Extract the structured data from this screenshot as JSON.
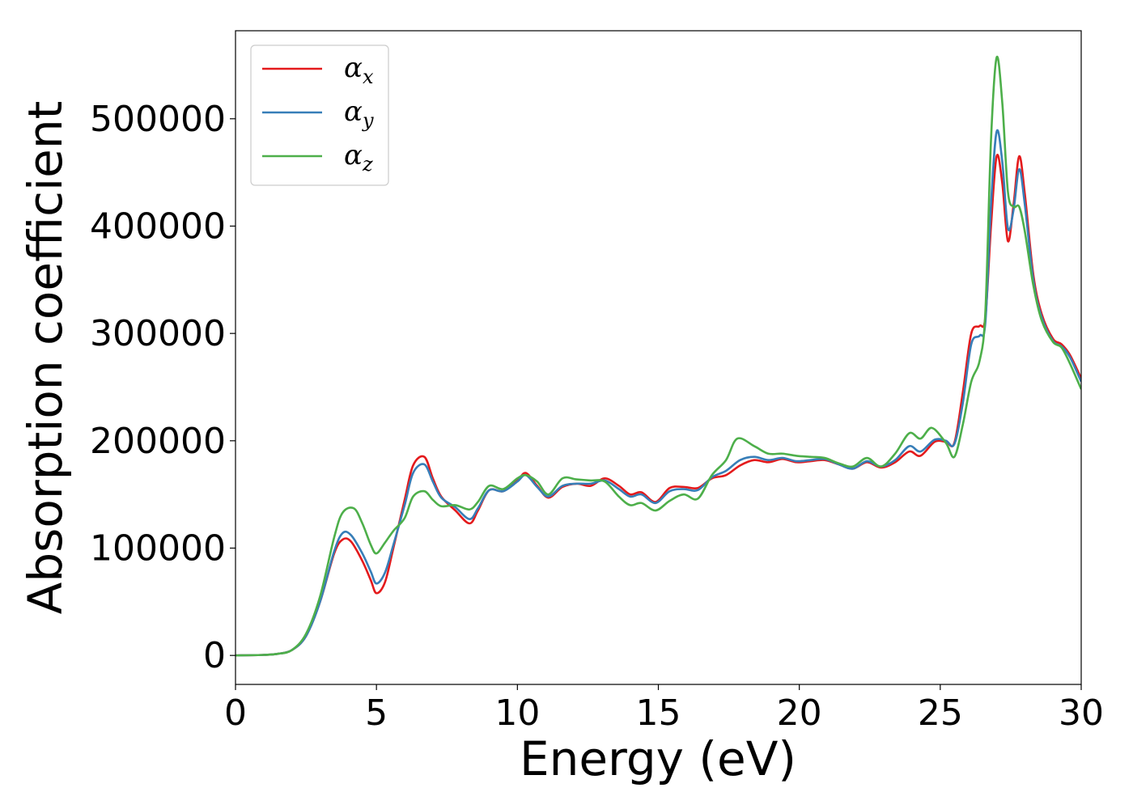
{
  "chart_data": {
    "type": "line",
    "title": "",
    "xlabel": "Energy (eV)",
    "ylabel": "Absorption coefficient",
    "xlim": [
      0,
      30
    ],
    "ylim": [
      -27000,
      582000
    ],
    "xticks": [
      0,
      5,
      10,
      15,
      20,
      25,
      30
    ],
    "yticks": [
      0,
      100000,
      200000,
      300000,
      400000,
      500000
    ],
    "grid": false,
    "legend_position": "upper-left",
    "series": [
      {
        "name": "α_x",
        "symbol": "α",
        "subscript": "x",
        "color": "#e41a1c",
        "points": [
          [
            0,
            0
          ],
          [
            1,
            500
          ],
          [
            1.5,
            1500
          ],
          [
            2,
            5000
          ],
          [
            2.5,
            18000
          ],
          [
            3,
            50000
          ],
          [
            3.5,
            95000
          ],
          [
            3.8,
            108000
          ],
          [
            4.1,
            106000
          ],
          [
            4.5,
            88000
          ],
          [
            4.8,
            70000
          ],
          [
            5,
            58000
          ],
          [
            5.3,
            68000
          ],
          [
            5.6,
            100000
          ],
          [
            6.0,
            145000
          ],
          [
            6.3,
            177000
          ],
          [
            6.7,
            185000
          ],
          [
            7.0,
            165000
          ],
          [
            7.3,
            148000
          ],
          [
            7.8,
            135000
          ],
          [
            8.3,
            123000
          ],
          [
            8.6,
            135000
          ],
          [
            9.0,
            154000
          ],
          [
            9.5,
            153000
          ],
          [
            10.0,
            163000
          ],
          [
            10.3,
            170000
          ],
          [
            10.7,
            158000
          ],
          [
            11.1,
            147000
          ],
          [
            11.6,
            157000
          ],
          [
            12.1,
            160000
          ],
          [
            12.6,
            158000
          ],
          [
            13.1,
            165000
          ],
          [
            13.6,
            158000
          ],
          [
            14.0,
            150000
          ],
          [
            14.4,
            152000
          ],
          [
            14.9,
            143000
          ],
          [
            15.4,
            156000
          ],
          [
            15.9,
            157000
          ],
          [
            16.4,
            156000
          ],
          [
            16.9,
            165000
          ],
          [
            17.4,
            168000
          ],
          [
            17.9,
            177000
          ],
          [
            18.4,
            182000
          ],
          [
            18.9,
            180000
          ],
          [
            19.4,
            183000
          ],
          [
            19.9,
            180000
          ],
          [
            20.4,
            181000
          ],
          [
            20.9,
            182000
          ],
          [
            21.4,
            178000
          ],
          [
            21.9,
            174000
          ],
          [
            22.4,
            180000
          ],
          [
            22.9,
            175000
          ],
          [
            23.4,
            180000
          ],
          [
            23.9,
            190000
          ],
          [
            24.3,
            186000
          ],
          [
            24.8,
            199000
          ],
          [
            25.2,
            199000
          ],
          [
            25.5,
            198000
          ],
          [
            25.8,
            245000
          ],
          [
            26.1,
            300000
          ],
          [
            26.4,
            307000
          ],
          [
            26.6,
            315000
          ],
          [
            26.8,
            400000
          ],
          [
            27.0,
            465000
          ],
          [
            27.2,
            440000
          ],
          [
            27.4,
            386000
          ],
          [
            27.6,
            420000
          ],
          [
            27.8,
            465000
          ],
          [
            28.0,
            430000
          ],
          [
            28.3,
            355000
          ],
          [
            28.6,
            318000
          ],
          [
            29.0,
            295000
          ],
          [
            29.3,
            290000
          ],
          [
            29.6,
            280000
          ],
          [
            30.0,
            258000
          ]
        ]
      },
      {
        "name": "α_y",
        "symbol": "α",
        "subscript": "y",
        "color": "#377eb8",
        "points": [
          [
            0,
            0
          ],
          [
            1,
            500
          ],
          [
            1.5,
            1500
          ],
          [
            2,
            5000
          ],
          [
            2.5,
            18000
          ],
          [
            3,
            50000
          ],
          [
            3.5,
            97000
          ],
          [
            3.8,
            114000
          ],
          [
            4.1,
            112000
          ],
          [
            4.5,
            95000
          ],
          [
            4.8,
            78000
          ],
          [
            5,
            67000
          ],
          [
            5.3,
            77000
          ],
          [
            5.6,
            103000
          ],
          [
            6.0,
            140000
          ],
          [
            6.3,
            170000
          ],
          [
            6.7,
            178000
          ],
          [
            7.0,
            162000
          ],
          [
            7.3,
            147000
          ],
          [
            7.8,
            138000
          ],
          [
            8.3,
            127000
          ],
          [
            8.6,
            137000
          ],
          [
            9.0,
            154000
          ],
          [
            9.5,
            153000
          ],
          [
            10.0,
            162000
          ],
          [
            10.3,
            168000
          ],
          [
            10.7,
            157000
          ],
          [
            11.1,
            148000
          ],
          [
            11.6,
            158000
          ],
          [
            12.1,
            160000
          ],
          [
            12.6,
            160000
          ],
          [
            13.1,
            163000
          ],
          [
            13.6,
            155000
          ],
          [
            14.0,
            148000
          ],
          [
            14.4,
            150000
          ],
          [
            14.9,
            142000
          ],
          [
            15.4,
            153000
          ],
          [
            15.9,
            155000
          ],
          [
            16.4,
            154000
          ],
          [
            16.9,
            166000
          ],
          [
            17.4,
            172000
          ],
          [
            17.9,
            182000
          ],
          [
            18.4,
            185000
          ],
          [
            18.9,
            182000
          ],
          [
            19.4,
            184000
          ],
          [
            19.9,
            181000
          ],
          [
            20.4,
            182000
          ],
          [
            20.9,
            183000
          ],
          [
            21.4,
            178000
          ],
          [
            21.9,
            174000
          ],
          [
            22.4,
            181000
          ],
          [
            22.9,
            176000
          ],
          [
            23.4,
            182000
          ],
          [
            23.9,
            195000
          ],
          [
            24.3,
            190000
          ],
          [
            24.8,
            201000
          ],
          [
            25.2,
            200000
          ],
          [
            25.5,
            197000
          ],
          [
            25.8,
            235000
          ],
          [
            26.1,
            290000
          ],
          [
            26.4,
            298000
          ],
          [
            26.6,
            310000
          ],
          [
            26.8,
            420000
          ],
          [
            27.0,
            488000
          ],
          [
            27.2,
            460000
          ],
          [
            27.4,
            398000
          ],
          [
            27.6,
            415000
          ],
          [
            27.8,
            453000
          ],
          [
            28.0,
            420000
          ],
          [
            28.3,
            350000
          ],
          [
            28.6,
            315000
          ],
          [
            29.0,
            293000
          ],
          [
            29.3,
            288000
          ],
          [
            29.6,
            278000
          ],
          [
            30.0,
            255000
          ]
        ]
      },
      {
        "name": "α_z",
        "symbol": "α",
        "subscript": "z",
        "color": "#4daf4a",
        "points": [
          [
            0,
            0
          ],
          [
            1,
            500
          ],
          [
            1.5,
            1500
          ],
          [
            2,
            5000
          ],
          [
            2.5,
            20000
          ],
          [
            3,
            55000
          ],
          [
            3.5,
            110000
          ],
          [
            3.8,
            133000
          ],
          [
            4.2,
            137000
          ],
          [
            4.5,
            123000
          ],
          [
            4.8,
            103000
          ],
          [
            5,
            95000
          ],
          [
            5.3,
            105000
          ],
          [
            5.6,
            116000
          ],
          [
            6.0,
            128000
          ],
          [
            6.3,
            148000
          ],
          [
            6.7,
            153000
          ],
          [
            7.0,
            145000
          ],
          [
            7.3,
            139000
          ],
          [
            7.8,
            140000
          ],
          [
            8.3,
            136000
          ],
          [
            8.6,
            143000
          ],
          [
            9.0,
            158000
          ],
          [
            9.5,
            155000
          ],
          [
            10.0,
            165000
          ],
          [
            10.3,
            168000
          ],
          [
            10.7,
            162000
          ],
          [
            11.1,
            150000
          ],
          [
            11.6,
            165000
          ],
          [
            12.1,
            164000
          ],
          [
            12.6,
            163000
          ],
          [
            13.1,
            162000
          ],
          [
            13.6,
            148000
          ],
          [
            14.0,
            140000
          ],
          [
            14.4,
            142000
          ],
          [
            14.9,
            135000
          ],
          [
            15.4,
            144000
          ],
          [
            15.9,
            150000
          ],
          [
            16.4,
            146000
          ],
          [
            16.9,
            168000
          ],
          [
            17.4,
            182000
          ],
          [
            17.8,
            202000
          ],
          [
            18.4,
            195000
          ],
          [
            18.9,
            188000
          ],
          [
            19.4,
            188000
          ],
          [
            19.9,
            186000
          ],
          [
            20.4,
            185000
          ],
          [
            20.9,
            184000
          ],
          [
            21.4,
            179000
          ],
          [
            21.9,
            176000
          ],
          [
            22.4,
            184000
          ],
          [
            22.9,
            176000
          ],
          [
            23.4,
            188000
          ],
          [
            23.9,
            207000
          ],
          [
            24.3,
            202000
          ],
          [
            24.7,
            212000
          ],
          [
            25.2,
            198000
          ],
          [
            25.5,
            185000
          ],
          [
            25.8,
            215000
          ],
          [
            26.1,
            255000
          ],
          [
            26.4,
            275000
          ],
          [
            26.6,
            320000
          ],
          [
            26.8,
            480000
          ],
          [
            27.0,
            557000
          ],
          [
            27.2,
            515000
          ],
          [
            27.4,
            432000
          ],
          [
            27.6,
            418000
          ],
          [
            27.8,
            418000
          ],
          [
            28.0,
            395000
          ],
          [
            28.3,
            345000
          ],
          [
            28.6,
            312000
          ],
          [
            29.0,
            292000
          ],
          [
            29.3,
            287000
          ],
          [
            29.6,
            272000
          ],
          [
            30.0,
            248000
          ]
        ]
      }
    ]
  }
}
